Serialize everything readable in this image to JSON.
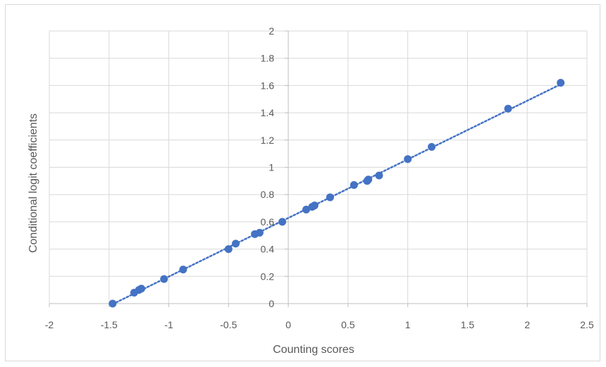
{
  "chart_data": {
    "type": "scatter",
    "title": "",
    "xlabel": "Counting scores",
    "ylabel": "Conditional logit coefficients",
    "xlim": [
      -2,
      2.5
    ],
    "ylim": [
      0,
      2
    ],
    "x_ticks": [
      -2,
      -1.5,
      -1,
      -0.5,
      0,
      0.5,
      1,
      1.5,
      2,
      2.5
    ],
    "y_ticks": [
      0,
      0.2,
      0.4,
      0.6,
      0.8,
      1,
      1.2,
      1.4,
      1.6,
      1.8,
      2
    ],
    "x_tick_labels": [
      "-2",
      "-1.5",
      "-1",
      "-0.5",
      "0",
      "0.5",
      "1",
      "1.5",
      "2",
      "2.5"
    ],
    "y_tick_labels": [
      "0",
      "0.2",
      "0.4",
      "0.6",
      "0.8",
      "1",
      "1.2",
      "1.4",
      "1.6",
      "1.8",
      "2"
    ],
    "grid": true,
    "trendline": {
      "type": "linear",
      "style": "dotted"
    },
    "series": [
      {
        "color": "#4472c4",
        "points": [
          {
            "x": -1.47,
            "y": 0.0
          },
          {
            "x": -1.29,
            "y": 0.08
          },
          {
            "x": -1.25,
            "y": 0.1
          },
          {
            "x": -1.23,
            "y": 0.11
          },
          {
            "x": -1.04,
            "y": 0.18
          },
          {
            "x": -0.88,
            "y": 0.25
          },
          {
            "x": -0.5,
            "y": 0.4
          },
          {
            "x": -0.44,
            "y": 0.44
          },
          {
            "x": -0.28,
            "y": 0.51
          },
          {
            "x": -0.24,
            "y": 0.52
          },
          {
            "x": -0.05,
            "y": 0.6
          },
          {
            "x": 0.15,
            "y": 0.69
          },
          {
            "x": 0.2,
            "y": 0.71
          },
          {
            "x": 0.22,
            "y": 0.72
          },
          {
            "x": 0.35,
            "y": 0.78
          },
          {
            "x": 0.55,
            "y": 0.87
          },
          {
            "x": 0.66,
            "y": 0.9
          },
          {
            "x": 0.67,
            "y": 0.91
          },
          {
            "x": 0.76,
            "y": 0.94
          },
          {
            "x": 1.0,
            "y": 1.06
          },
          {
            "x": 1.2,
            "y": 1.15
          },
          {
            "x": 1.84,
            "y": 1.43
          },
          {
            "x": 2.28,
            "y": 1.62
          }
        ]
      }
    ]
  }
}
